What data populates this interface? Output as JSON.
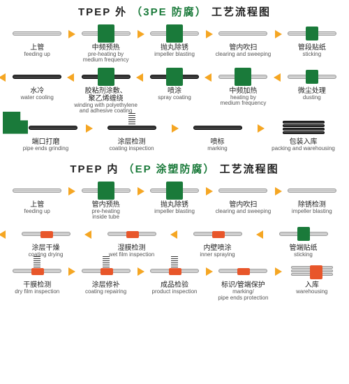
{
  "section1": {
    "title_pre": "TPEP 外 ",
    "title_green": "（3PE 防腐）",
    "title_post": " 工艺流程图",
    "rows": [
      [
        {
          "cn": "上管",
          "en": "feeding up",
          "kind": "pipe",
          "arr": "right"
        },
        {
          "cn": "中频预热",
          "en": "pre-heating by\nmedium frequency",
          "kind": "block",
          "arr": "right"
        },
        {
          "cn": "抛丸除锈",
          "en": "impeller blasting",
          "kind": "block",
          "arr": "right"
        },
        {
          "cn": "管内吹扫",
          "en": "clearing and sweeping",
          "kind": "pipe",
          "arr": "right"
        },
        {
          "cn": "管段贴纸",
          "en": "sticking",
          "kind": "block-sm",
          "arr": ""
        }
      ],
      [
        {
          "cn": "水冷",
          "en": "water cooling",
          "kind": "dark",
          "arr": "left"
        },
        {
          "cn": "胶粘剂涂敷、\n聚乙烯缠绕",
          "en": "winding with polyethylene\nand adhesive coating",
          "kind": "dark-block",
          "arr": "left"
        },
        {
          "cn": "喷涂",
          "en": "spray coating",
          "kind": "dark-block",
          "arr": "left"
        },
        {
          "cn": "中频加热",
          "en": "heating by\nmedium frequency",
          "kind": "block",
          "arr": "left"
        },
        {
          "cn": "微尘处理",
          "en": "dusting",
          "kind": "block-sm",
          "arr": "left"
        }
      ],
      [
        {
          "cn": "端口打磨",
          "en": "pipe ends grinding",
          "kind": "grinder",
          "arr": "right"
        },
        {
          "cn": "涂层检测",
          "en": "coating inspection",
          "kind": "dark-spring",
          "arr": "right"
        },
        {
          "cn": "喷标",
          "en": "marking",
          "kind": "dark",
          "arr": "right"
        },
        {
          "cn": "包装入库",
          "en": "packing and warehousing",
          "kind": "stack",
          "arr": ""
        }
      ]
    ]
  },
  "section2": {
    "title_pre": "TPEP 内 ",
    "title_green": "（EP 涂塑防腐）",
    "title_post": " 工艺流程图",
    "rows": [
      [
        {
          "cn": "上管",
          "en": "feeding up",
          "kind": "pipe",
          "arr": "right"
        },
        {
          "cn": "管内预热",
          "en": "pre-heating\ninside tube",
          "kind": "block",
          "arr": "right"
        },
        {
          "cn": "抛丸除锈",
          "en": "impeller blasting",
          "kind": "block",
          "arr": "right"
        },
        {
          "cn": "管内吹扫",
          "en": "clearing and sweeping",
          "kind": "pipe",
          "arr": "right"
        },
        {
          "cn": "除锈检测",
          "en": "impeller blasting",
          "kind": "pipe",
          "arr": ""
        }
      ],
      [
        {
          "cn": "涂层干燥",
          "en": "coating drying",
          "kind": "orange",
          "arr": "left"
        },
        {
          "cn": "湿膜检测",
          "en": "wet film inspection",
          "kind": "orange",
          "arr": "left"
        },
        {
          "cn": "内壁喷涂",
          "en": "inner spraying",
          "kind": "orange",
          "arr": "left"
        },
        {
          "cn": "管端贴纸",
          "en": "sticking",
          "kind": "block-sm",
          "arr": "left"
        }
      ],
      [
        {
          "cn": "干膜检测",
          "en": "dry film inspection",
          "kind": "orange-spring",
          "arr": "right"
        },
        {
          "cn": "涂层修补",
          "en": "coating repairing",
          "kind": "orange-spring",
          "arr": "right"
        },
        {
          "cn": "成品检验",
          "en": "product inspection",
          "kind": "orange-spring",
          "arr": "right"
        },
        {
          "cn": "标识/管端保护",
          "en": "marking/\npipe ends protection",
          "kind": "orange",
          "arr": "right"
        },
        {
          "cn": "入库",
          "en": "warehousing",
          "kind": "stack-o",
          "arr": ""
        }
      ]
    ]
  },
  "colors": {
    "green": "#1a7a3a",
    "arrow": "#f5a623",
    "orange": "#e8562a",
    "text": "#222222",
    "text_en": "#555555",
    "bg": "#ffffff"
  }
}
